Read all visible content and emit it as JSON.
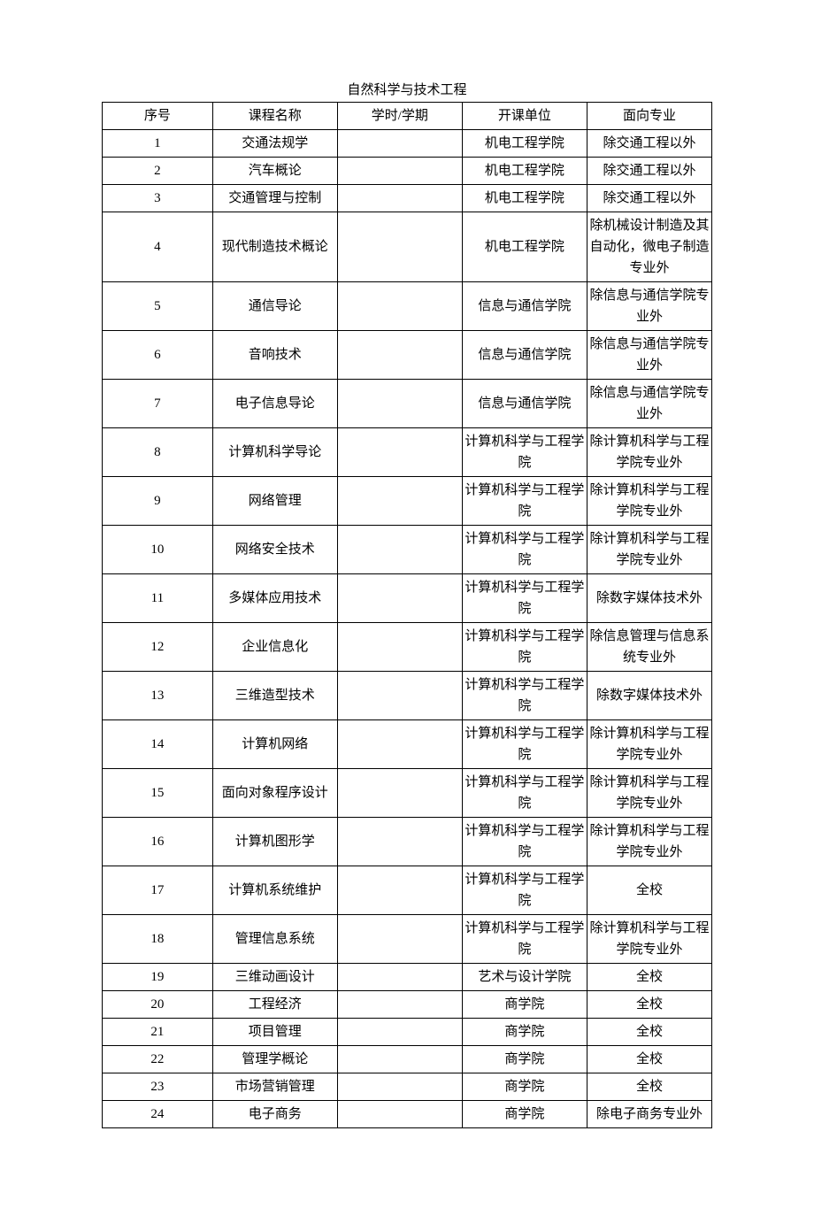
{
  "title": "自然科学与技术工程",
  "table": {
    "columns": [
      "序号",
      "课程名称",
      "学时/学期",
      "开课单位",
      "面向专业"
    ],
    "rows": [
      [
        "1",
        "交通法规学",
        "",
        "机电工程学院",
        "除交通工程以外"
      ],
      [
        "2",
        "汽车概论",
        "",
        "机电工程学院",
        "除交通工程以外"
      ],
      [
        "3",
        "交通管理与控制",
        "",
        "机电工程学院",
        "除交通工程以外"
      ],
      [
        "4",
        "现代制造技术概论",
        "",
        "机电工程学院",
        "除机械设计制造及其自动化，微电子制造专业外"
      ],
      [
        "5",
        "通信导论",
        "",
        "信息与通信学院",
        "除信息与通信学院专业外"
      ],
      [
        "6",
        "音响技术",
        "",
        "信息与通信学院",
        "除信息与通信学院专业外"
      ],
      [
        "7",
        "电子信息导论",
        "",
        "信息与通信学院",
        "除信息与通信学院专业外"
      ],
      [
        "8",
        "计算机科学导论",
        "",
        "计算机科学与工程学院",
        "除计算机科学与工程学院专业外"
      ],
      [
        "9",
        "网络管理",
        "",
        "计算机科学与工程学院",
        "除计算机科学与工程学院专业外"
      ],
      [
        "10",
        "网络安全技术",
        "",
        "计算机科学与工程学院",
        "除计算机科学与工程学院专业外"
      ],
      [
        "11",
        "多媒体应用技术",
        "",
        "计算机科学与工程学院",
        "除数字媒体技术外"
      ],
      [
        "12",
        "企业信息化",
        "",
        "计算机科学与工程学院",
        "除信息管理与信息系统专业外"
      ],
      [
        "13",
        "三维造型技术",
        "",
        "计算机科学与工程学院",
        "除数字媒体技术外"
      ],
      [
        "14",
        "计算机网络",
        "",
        "计算机科学与工程学院",
        "除计算机科学与工程学院专业外"
      ],
      [
        "15",
        "面向对象程序设计",
        "",
        "计算机科学与工程学院",
        "除计算机科学与工程学院专业外"
      ],
      [
        "16",
        "计算机图形学",
        "",
        "计算机科学与工程学院",
        "除计算机科学与工程学院专业外"
      ],
      [
        "17",
        "计算机系统维护",
        "",
        "计算机科学与工程学院",
        "全校"
      ],
      [
        "18",
        "管理信息系统",
        "",
        "计算机科学与工程学院",
        "除计算机科学与工程学院专业外"
      ],
      [
        "19",
        "三维动画设计",
        "",
        "艺术与设计学院",
        "全校"
      ],
      [
        "20",
        "工程经济",
        "",
        "商学院",
        "全校"
      ],
      [
        "21",
        "项目管理",
        "",
        "商学院",
        "全校"
      ],
      [
        "22",
        "管理学概论",
        "",
        "商学院",
        "全校"
      ],
      [
        "23",
        "市场营销管理",
        "",
        "商学院",
        "全校"
      ],
      [
        "24",
        "电子商务",
        "",
        "商学院",
        "除电子商务专业外"
      ]
    ]
  }
}
